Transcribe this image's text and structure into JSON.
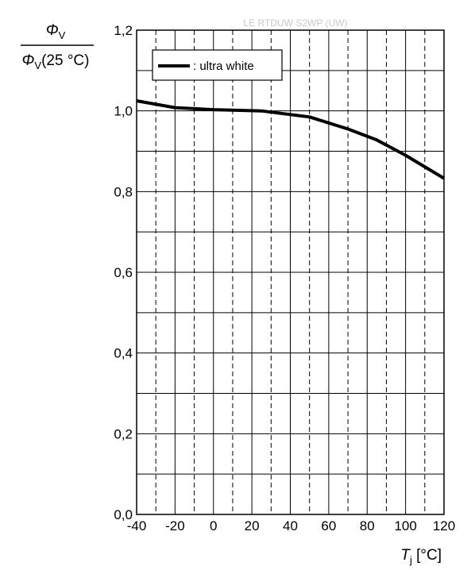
{
  "chart_data": {
    "type": "line",
    "title": "LE RTDUW S2WP (UW)",
    "ylabel": {
      "num_symbol": "Φ",
      "num_sub": "V",
      "den_symbol": "Φ",
      "den_sub": "V",
      "den_arg": "(25 °C)"
    },
    "xlabel": {
      "symbol": "T",
      "sub": "j",
      "unit": " [°C]"
    },
    "xlim": [
      -40,
      120
    ],
    "ylim": [
      0.0,
      1.2
    ],
    "x_ticks": [
      -40,
      -20,
      0,
      20,
      40,
      60,
      80,
      100,
      120
    ],
    "x_tick_labels": [
      "-40",
      "-20",
      "0",
      "20",
      "40",
      "60",
      "80",
      "100",
      "120"
    ],
    "y_ticks": [
      0.0,
      0.2,
      0.4,
      0.6,
      0.8,
      1.0,
      1.2
    ],
    "y_tick_labels": [
      "0,0",
      "0,2",
      "0,4",
      "0,6",
      "0,8",
      "1,0",
      "1,2"
    ],
    "x_minor_ticks": [
      -30,
      -10,
      10,
      30,
      50,
      70,
      90,
      110
    ],
    "y_minor_ticks": [
      0.1,
      0.3,
      0.5,
      0.7,
      0.9,
      1.1
    ],
    "grid": true,
    "legend_position": "top-left",
    "series": [
      {
        "name": ": ultra white",
        "color": "#000000",
        "x": [
          -40,
          -20,
          0,
          25,
          50,
          70,
          85,
          100,
          120
        ],
        "y": [
          1.025,
          1.008,
          1.003,
          1.0,
          0.985,
          0.955,
          0.928,
          0.89,
          0.833
        ]
      }
    ]
  }
}
